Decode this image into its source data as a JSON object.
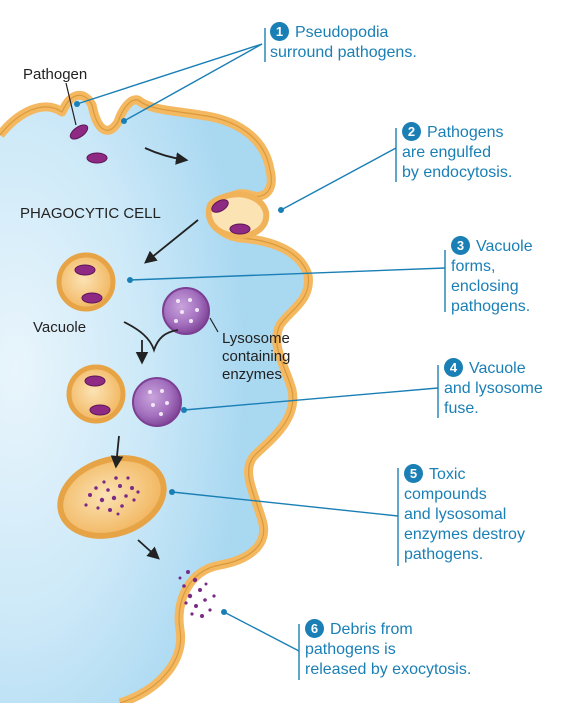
{
  "cell_label": "PHAGOCYTIC CELL",
  "labels": {
    "pathogen": "Pathogen",
    "vacuole": "Vacuole",
    "lysosome": [
      "Lysosome",
      "containing",
      "enzymes"
    ]
  },
  "steps": [
    {
      "number": "1",
      "lines": [
        "Pseudopodia",
        "surround pathogens."
      ]
    },
    {
      "number": "2",
      "lines": [
        "Pathogens",
        "are engulfed",
        "by endocytosis."
      ]
    },
    {
      "number": "3",
      "lines": [
        "Vacuole",
        "forms,",
        "enclosing",
        "pathogens."
      ]
    },
    {
      "number": "4",
      "lines": [
        "Vacuole",
        "and lysosome",
        "fuse."
      ]
    },
    {
      "number": "5",
      "lines": [
        "Toxic",
        "compounds",
        "and lysosomal",
        "enzymes destroy",
        "pathogens."
      ]
    },
    {
      "number": "6",
      "lines": [
        "Debris from",
        "pathogens is",
        "released by exocytosis."
      ]
    }
  ],
  "colors": {
    "cytoplasm": "#b9dff3",
    "membrane": "#f4b860",
    "membrane_dark": "#d99a3c",
    "pathogen": "#8e2a83",
    "lysosome": "#8f4ea0",
    "callout": "#1a7fb5"
  }
}
